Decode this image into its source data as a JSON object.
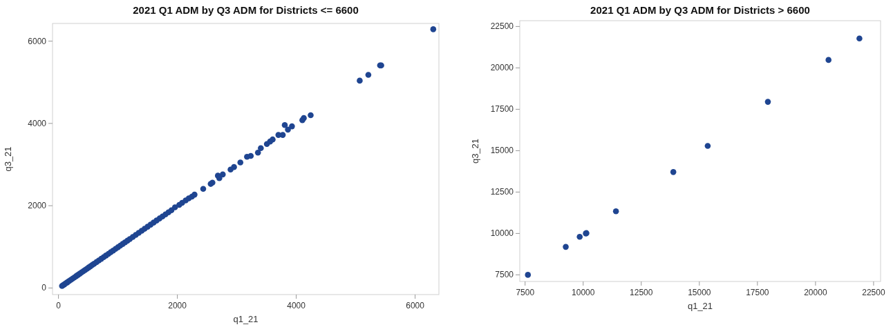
{
  "chart_data": [
    {
      "type": "scatter",
      "title": "2021 Q1 ADM by Q3 ADM for Districts <= 6600",
      "xlabel": "q1_21",
      "ylabel": "q3_21",
      "xlim": [
        -100,
        6400
      ],
      "ylim": [
        -160,
        6430
      ],
      "xticks": [
        0,
        2000,
        4000,
        6000
      ],
      "yticks": [
        0,
        2000,
        4000,
        6000
      ],
      "grid": false,
      "marker": "circle",
      "color": "#1f4591",
      "x": [
        60,
        80,
        100,
        130,
        150,
        180,
        210,
        240,
        270,
        300,
        330,
        360,
        390,
        420,
        450,
        480,
        510,
        540,
        570,
        600,
        640,
        680,
        720,
        760,
        800,
        840,
        880,
        920,
        960,
        1000,
        1040,
        1080,
        1120,
        1160,
        1200,
        1250,
        1300,
        1350,
        1400,
        1450,
        1500,
        1550,
        1600,
        1650,
        1700,
        1750,
        1800,
        1850,
        1900,
        1960,
        2032,
        2080,
        2140,
        2192,
        2245,
        2289,
        2435,
        2561,
        2590,
        2682,
        2706,
        2764,
        2895,
        2953,
        3060,
        3172,
        3235,
        3356,
        3404,
        3506,
        3560,
        3603,
        3700,
        3773,
        3807,
        3860,
        3928,
        4103,
        4127,
        4243,
        5068,
        5213,
        5410,
        5430,
        6305
      ],
      "values": [
        50,
        70,
        90,
        120,
        140,
        170,
        200,
        230,
        260,
        290,
        320,
        350,
        380,
        410,
        440,
        470,
        500,
        530,
        560,
        590,
        630,
        670,
        710,
        750,
        790,
        830,
        870,
        910,
        950,
        990,
        1030,
        1070,
        1110,
        1150,
        1190,
        1240,
        1290,
        1340,
        1390,
        1440,
        1490,
        1540,
        1590,
        1640,
        1690,
        1740,
        1790,
        1840,
        1890,
        1960,
        2020,
        2070,
        2130,
        2180,
        2220,
        2270,
        2410,
        2530,
        2560,
        2730,
        2670,
        2760,
        2880,
        2940,
        3050,
        3190,
        3210,
        3290,
        3400,
        3500,
        3560,
        3610,
        3720,
        3720,
        3960,
        3850,
        3930,
        4080,
        4130,
        4200,
        5040,
        5180,
        5410,
        5410,
        6290
      ]
    },
    {
      "type": "scatter",
      "title": "2021 Q1 ADM by Q3 ADM for Districts > 6600",
      "xlabel": "q1_21",
      "ylabel": "q3_21",
      "xlim": [
        7270,
        22800
      ],
      "ylim": [
        7100,
        22850
      ],
      "xticks": [
        7500,
        10000,
        12500,
        15000,
        17500,
        20000,
        22500
      ],
      "yticks": [
        7500,
        10000,
        12500,
        15000,
        17500,
        20000,
        22500
      ],
      "grid": false,
      "marker": "circle",
      "color": "#1f4591",
      "x": [
        7620,
        9250,
        9850,
        10115,
        10140,
        11410,
        13880,
        15360,
        17950,
        20560,
        21890
      ],
      "values": [
        7500,
        9190,
        9800,
        10000,
        10020,
        11340,
        13710,
        15290,
        17950,
        20480,
        21780
      ]
    }
  ]
}
